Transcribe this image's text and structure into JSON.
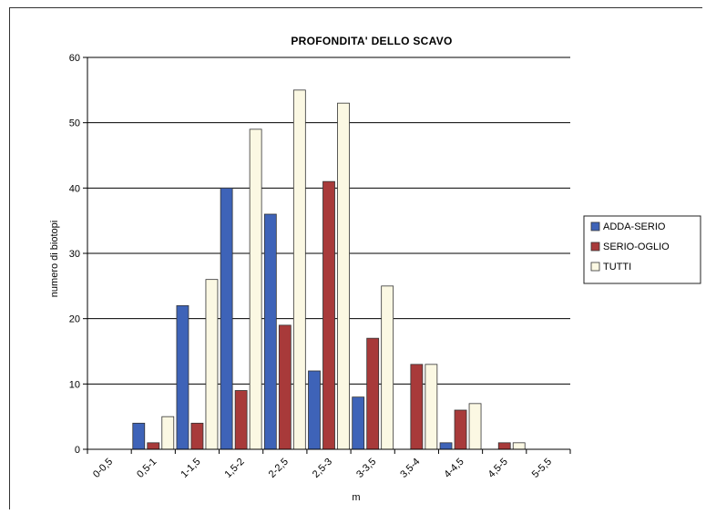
{
  "chart_data": {
    "type": "bar",
    "title": "PROFONDITA' DELLO SCAVO",
    "xlabel": "m",
    "ylabel": "numero di biotopi",
    "ylim": [
      0,
      60
    ],
    "yticks": [
      0,
      10,
      20,
      30,
      40,
      50,
      60
    ],
    "grid": true,
    "legend_position": "right",
    "categories": [
      "0-0,5",
      "0,5-1",
      "1-1,5",
      "1,5-2",
      "2-2,5",
      "2,5-3",
      "3-3,5",
      "3,5-4",
      "4-4,5",
      "4,5-5",
      "5-5,5"
    ],
    "series": [
      {
        "name": "ADDA-SERIO",
        "color": "#3e63b8",
        "values": [
          0,
          4,
          22,
          40,
          36,
          12,
          8,
          0,
          1,
          0,
          0
        ]
      },
      {
        "name": "SERIO-OGLIO",
        "color": "#a83a3a",
        "values": [
          0,
          1,
          4,
          9,
          19,
          41,
          17,
          13,
          6,
          1,
          0
        ]
      },
      {
        "name": "TUTTI",
        "color": "#fbf8e3",
        "values": [
          0,
          5,
          26,
          49,
          55,
          53,
          25,
          13,
          7,
          1,
          0
        ]
      }
    ]
  }
}
